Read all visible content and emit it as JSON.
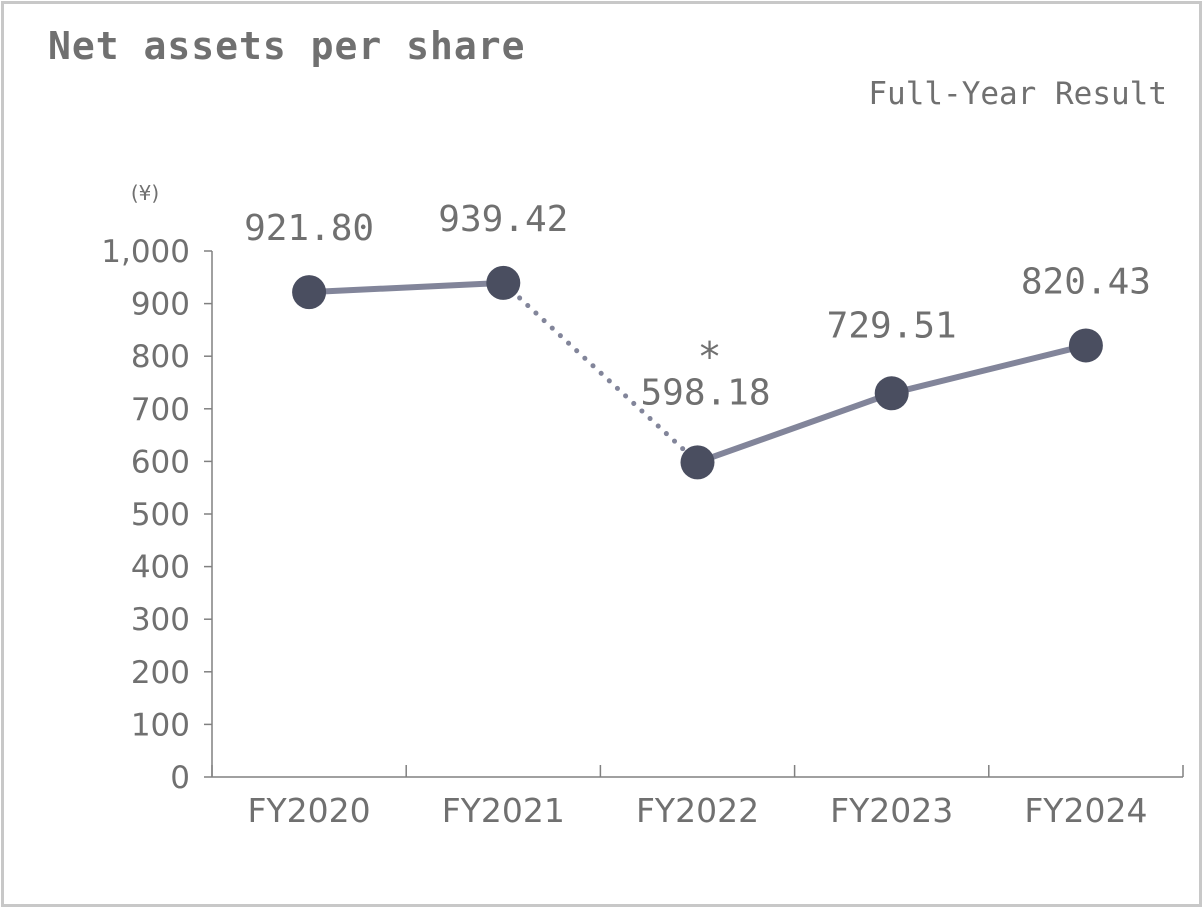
{
  "chart_data": {
    "type": "line",
    "title": "Net assets per share",
    "subtitle": "Full-Year Result",
    "unit_label": "(¥)",
    "categories": [
      "FY2020",
      "FY2021",
      "FY2022",
      "FY2023",
      "FY2024"
    ],
    "series": [
      {
        "values": [
          921.8,
          939.42,
          598.18,
          729.51,
          820.43
        ]
      }
    ],
    "data_labels": [
      "921.80",
      "939.42",
      "598.18",
      "729.51",
      "820.43"
    ],
    "annotation": {
      "text": "*",
      "category": "FY2022"
    },
    "segment_styles": [
      "solid",
      "dotted",
      "solid",
      "solid"
    ],
    "ylim": [
      0,
      1000
    ],
    "y_ticks": [
      0,
      100,
      200,
      300,
      400,
      500,
      600,
      700,
      800,
      900,
      1000
    ],
    "y_tick_labels": [
      "0",
      "100",
      "200",
      "300",
      "400",
      "500",
      "600",
      "700",
      "800",
      "900",
      "1,000"
    ],
    "grid": false,
    "legend": "none",
    "colors": {
      "line": "#82859a",
      "marker": "#4a4e60",
      "axis": "#808080",
      "text": "#707070"
    }
  }
}
